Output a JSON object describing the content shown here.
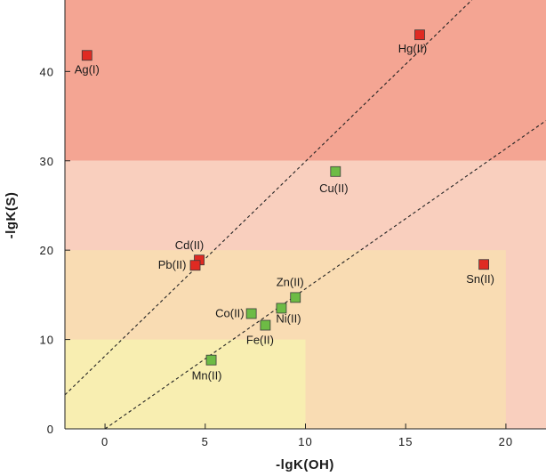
{
  "chart_data": {
    "type": "scatter",
    "title": "",
    "xlabel": "-lgK(OH)",
    "ylabel": "-lgK(S)",
    "xlim": [
      -2,
      22
    ],
    "ylim": [
      0,
      48
    ],
    "xticks": [
      0,
      5,
      10,
      15,
      20
    ],
    "yticks": [
      0,
      10,
      20,
      30,
      40
    ],
    "xtick_labels": [
      "0",
      "5",
      "10",
      "15",
      "20"
    ],
    "ytick_labels": [
      "0",
      "10",
      "20",
      "30",
      "40"
    ],
    "grid": false,
    "legend": "none",
    "regions": [
      {
        "x": [
          -2,
          22
        ],
        "y": [
          30,
          48
        ],
        "color": "#f4a593"
      },
      {
        "x": [
          -2,
          22
        ],
        "y": [
          0,
          30
        ],
        "color": "#f9cfbe"
      },
      {
        "x": [
          -2,
          20
        ],
        "y": [
          0,
          20
        ],
        "color": "#f9dcb3"
      },
      {
        "x": [
          -2,
          10
        ],
        "y": [
          0,
          10
        ],
        "color": "#f8eeb1"
      }
    ],
    "lines": [
      {
        "style": "dashed",
        "x": [
          -2,
          18.3
        ],
        "y": [
          3.8,
          48
        ]
      },
      {
        "style": "dashed",
        "x": [
          0,
          22
        ],
        "y": [
          0,
          34.5
        ]
      }
    ],
    "series": [
      {
        "color": "#e02a22",
        "points": [
          {
            "label": "Ag(I)",
            "x": -0.9,
            "y": 41.8
          },
          {
            "label": "Hg(II)",
            "x": 15.7,
            "y": 44.1
          },
          {
            "label": "Cd(II)",
            "x": 4.7,
            "y": 18.9
          },
          {
            "label": "Pb(II)",
            "x": 4.5,
            "y": 18.3
          },
          {
            "label": "Sn(II)",
            "x": 18.9,
            "y": 18.4
          }
        ]
      },
      {
        "color": "#6dbb45",
        "points": [
          {
            "label": "Cu(II)",
            "x": 11.5,
            "y": 28.8
          },
          {
            "label": "Zn(II)",
            "x": 9.5,
            "y": 14.7
          },
          {
            "label": "Ni(II)",
            "x": 8.8,
            "y": 13.5
          },
          {
            "label": "Co(II)",
            "x": 7.3,
            "y": 12.9
          },
          {
            "label": "Fe(II)",
            "x": 8.0,
            "y": 11.6
          },
          {
            "label": "Mn(II)",
            "x": 5.3,
            "y": 7.7
          }
        ]
      }
    ]
  }
}
